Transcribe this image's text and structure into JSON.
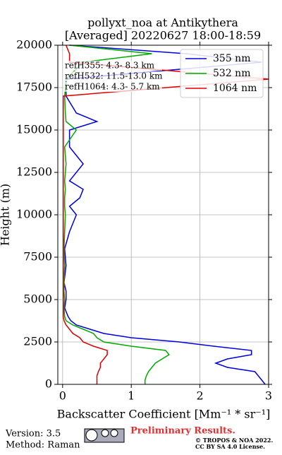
{
  "chart_data": {
    "type": "line",
    "title": "pollyxt_noa at Antikythera",
    "subtitle": "[Averaged] 20220627 18:00-18:59",
    "x_label": "Backscatter Coefficient [Mm⁻¹ * sr⁻¹]",
    "y_label": "Height (m)",
    "heights": [
      0,
      250,
      500,
      750,
      1000,
      1250,
      1500,
      1750,
      2000,
      2250,
      2500,
      2750,
      3000,
      3250,
      3500,
      3750,
      4000,
      4500,
      5000,
      5500,
      6000,
      7000,
      8000,
      9000,
      10000,
      10500,
      11000,
      11500,
      12000,
      13000,
      13500,
      14000,
      15000,
      15500,
      16000,
      17000,
      18000,
      19000,
      19500,
      20000
    ],
    "series": [
      {
        "name": "355 nm",
        "color": "#0000dd",
        "values": [
          2.95,
          2.9,
          2.85,
          2.8,
          2.4,
          2.23,
          2.4,
          2.75,
          2.75,
          2.2,
          1.7,
          1.0,
          0.6,
          0.4,
          0.2,
          0.12,
          0.08,
          0.03,
          0.05,
          0.05,
          0.02,
          0.05,
          0.03,
          0.1,
          0.2,
          0.1,
          0.25,
          0.3,
          0.1,
          0.3,
          0.2,
          0.1,
          0.1,
          0.5,
          0.2,
          0.05,
          0.05,
          2.9,
          1.8,
          0.1
        ]
      },
      {
        "name": "532 nm",
        "color": "#00aa00",
        "values": [
          1.2,
          1.2,
          1.22,
          1.25,
          1.3,
          1.35,
          1.45,
          1.55,
          1.5,
          1.0,
          0.6,
          0.5,
          0.45,
          0.3,
          0.15,
          0.05,
          0.03,
          0.02,
          0.03,
          0.02,
          0.02,
          0.03,
          0.02,
          0.03,
          0.04,
          0.03,
          0.03,
          0.04,
          0.03,
          0.05,
          0.04,
          0.03,
          0.2,
          0.05,
          0.04,
          0.03,
          0.05,
          0.3,
          1.3,
          0.1
        ]
      },
      {
        "name": "1064 nm",
        "color": "#dd0000",
        "values": [
          0.5,
          0.5,
          0.5,
          0.52,
          0.55,
          0.55,
          0.6,
          0.65,
          0.65,
          0.45,
          0.3,
          0.25,
          0.15,
          0.1,
          0.05,
          0.02,
          0.01,
          0.01,
          0.01,
          0.01,
          0.01,
          0.01,
          0.01,
          0.01,
          0.01,
          0.01,
          0.01,
          0.01,
          0.01,
          0.01,
          0.01,
          0.01,
          0.01,
          0.01,
          0.01,
          0.01,
          3.0,
          0.1,
          0.1,
          0.05
        ]
      }
    ],
    "xlim": [
      -0.07,
      3
    ],
    "xticks": [
      0,
      1,
      2,
      3
    ],
    "ylim": [
      0,
      20000
    ],
    "yticks": [
      0,
      2500,
      5000,
      7500,
      10000,
      12500,
      15000,
      17500,
      20000
    ],
    "grid": true,
    "legend": "upper right",
    "annotations": [
      "refH355:  4.3- 8.3 km",
      "refH532: 11.5-13.0 km",
      "refH1064:  4.3- 5.7 km"
    ]
  },
  "footer": {
    "version": "Version: 3.5",
    "method": "Method: Raman",
    "notice": "Preliminary Results.",
    "copyright": "© TROPOS & NOA 2022.",
    "license": "CC BY SA 4.0 License."
  }
}
